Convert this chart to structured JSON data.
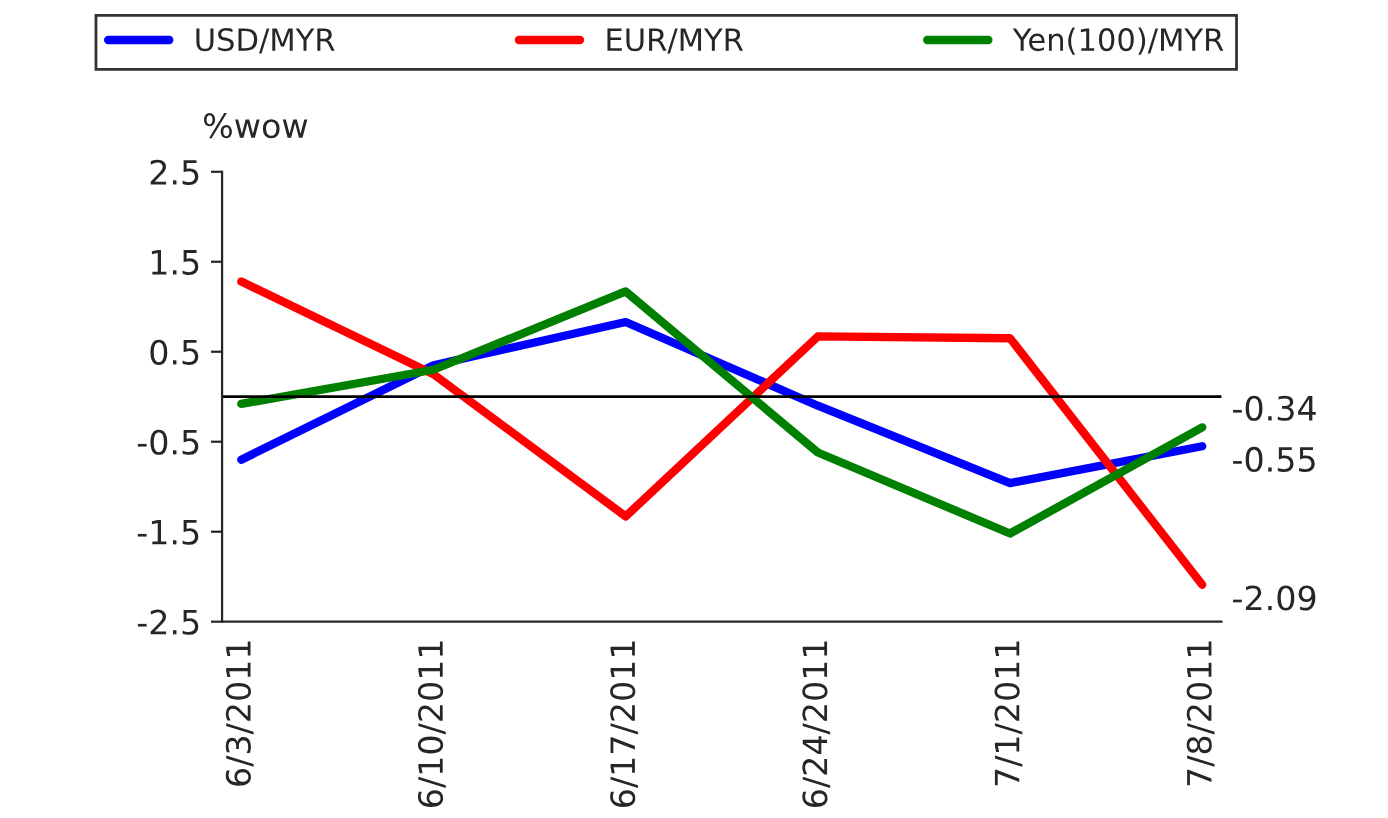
{
  "chart_data": {
    "type": "line",
    "ylabel": "%wow",
    "categories": [
      "6/3/2011",
      "6/10/2011",
      "6/17/2011",
      "6/24/2011",
      "7/1/2011",
      "7/8/2011"
    ],
    "series": [
      {
        "name": "USD/MYR",
        "color": "#0000ff",
        "values": [
          -0.7,
          0.35,
          0.83,
          -0.1,
          -0.96,
          -0.55
        ],
        "value_labels": [
          null,
          null,
          null,
          null,
          null,
          "-0.55"
        ]
      },
      {
        "name": "EUR/MYR",
        "color": "#ff0000",
        "values": [
          1.28,
          0.25,
          -1.33,
          0.67,
          0.65,
          -2.09
        ],
        "value_labels": [
          null,
          null,
          null,
          null,
          null,
          "-2.09"
        ]
      },
      {
        "name": "Yen(100)/MYR",
        "color": "#008000",
        "values": [
          -0.08,
          0.3,
          1.17,
          -0.62,
          -1.52,
          -0.34
        ],
        "value_labels": [
          null,
          null,
          null,
          null,
          null,
          "-0.34"
        ]
      }
    ],
    "ylim": [
      -2.5,
      2.5
    ],
    "yticks": [
      -2.5,
      -1.5,
      -0.5,
      0.5,
      1.5,
      2.5
    ],
    "grid": false,
    "legend": "top",
    "marker": "none",
    "line_style": "solid"
  }
}
